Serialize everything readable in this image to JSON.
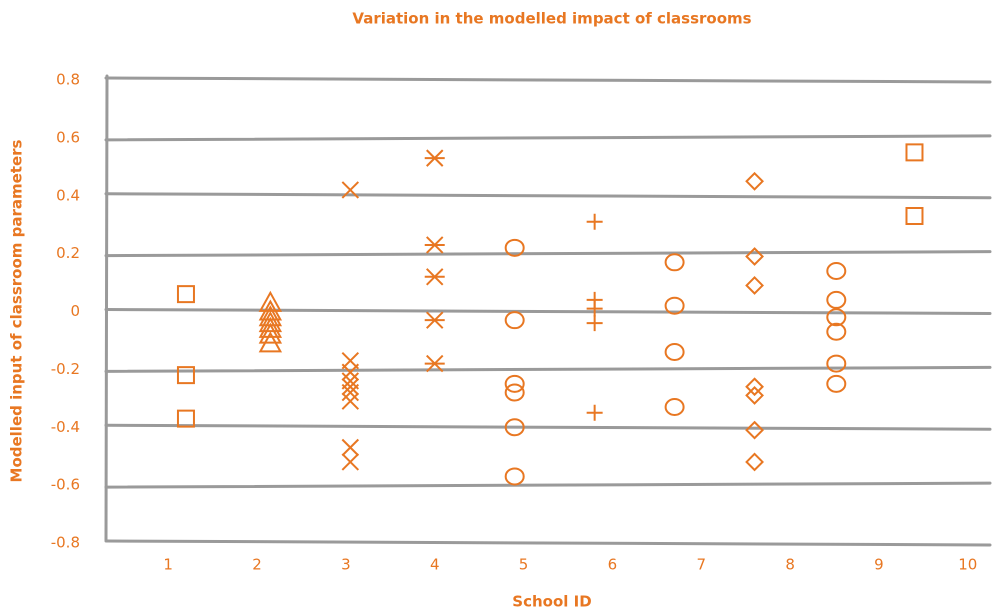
{
  "chart_data": {
    "type": "scatter",
    "title": "Variation in the modelled impact of classrooms",
    "x_label": "School ID",
    "y_label": "Modelled input of classroom parameters",
    "xlim": [
      0.3,
      10.25
    ],
    "xticks": [
      1,
      2,
      3,
      4,
      5,
      6,
      7,
      8,
      9,
      10
    ],
    "ylim": [
      -0.8,
      0.8
    ],
    "yticks": [
      0.8,
      0.6,
      0.4,
      0.2,
      0,
      -0.2,
      -0.4,
      -0.6,
      -0.8
    ],
    "grid": true,
    "color": "#e87722",
    "series": [
      {
        "marker": "square",
        "x": [
          1.2,
          1.2,
          1.2
        ],
        "values": [
          0.06,
          -0.22,
          -0.37
        ]
      },
      {
        "marker": "triangle",
        "x": [
          2.15,
          2.15,
          2.15,
          2.15,
          2.15,
          2.15,
          2.15
        ],
        "values": [
          0.03,
          0.0,
          -0.02,
          -0.04,
          -0.06,
          -0.08,
          -0.11
        ]
      },
      {
        "marker": "x",
        "x": [
          3.05,
          3.05,
          3.05,
          3.05,
          3.05,
          3.05,
          3.05,
          3.05,
          3.05
        ],
        "values": [
          0.42,
          -0.17,
          -0.21,
          -0.24,
          -0.26,
          -0.28,
          -0.31,
          -0.47,
          -0.52
        ]
      },
      {
        "marker": "asterisk",
        "x": [
          4.0,
          4.0,
          4.0,
          4.0,
          4.0
        ],
        "values": [
          0.53,
          0.23,
          0.12,
          -0.03,
          -0.18
        ]
      },
      {
        "marker": "circle",
        "x": [
          4.9,
          4.9,
          4.9,
          4.9,
          4.9,
          4.9
        ],
        "values": [
          0.22,
          -0.03,
          -0.25,
          -0.28,
          -0.4,
          -0.57
        ]
      },
      {
        "marker": "plus",
        "x": [
          5.8,
          5.8,
          5.8,
          5.8,
          5.8
        ],
        "values": [
          0.31,
          0.04,
          0.01,
          -0.04,
          -0.35
        ]
      },
      {
        "marker": "circle",
        "x": [
          6.7,
          6.7,
          6.7,
          6.7
        ],
        "values": [
          0.17,
          0.02,
          -0.14,
          -0.33
        ]
      },
      {
        "marker": "diamond",
        "x": [
          7.6,
          7.6,
          7.6,
          7.6,
          7.6,
          7.6,
          7.6
        ],
        "values": [
          0.45,
          0.19,
          0.09,
          -0.26,
          -0.29,
          -0.41,
          -0.52
        ]
      },
      {
        "marker": "circle",
        "x": [
          8.52,
          8.52,
          8.52,
          8.52,
          8.52,
          8.52
        ],
        "values": [
          0.14,
          0.04,
          -0.02,
          -0.07,
          -0.18,
          -0.25
        ]
      },
      {
        "marker": "square",
        "x": [
          9.4,
          9.4
        ],
        "values": [
          0.55,
          0.33
        ]
      }
    ]
  }
}
